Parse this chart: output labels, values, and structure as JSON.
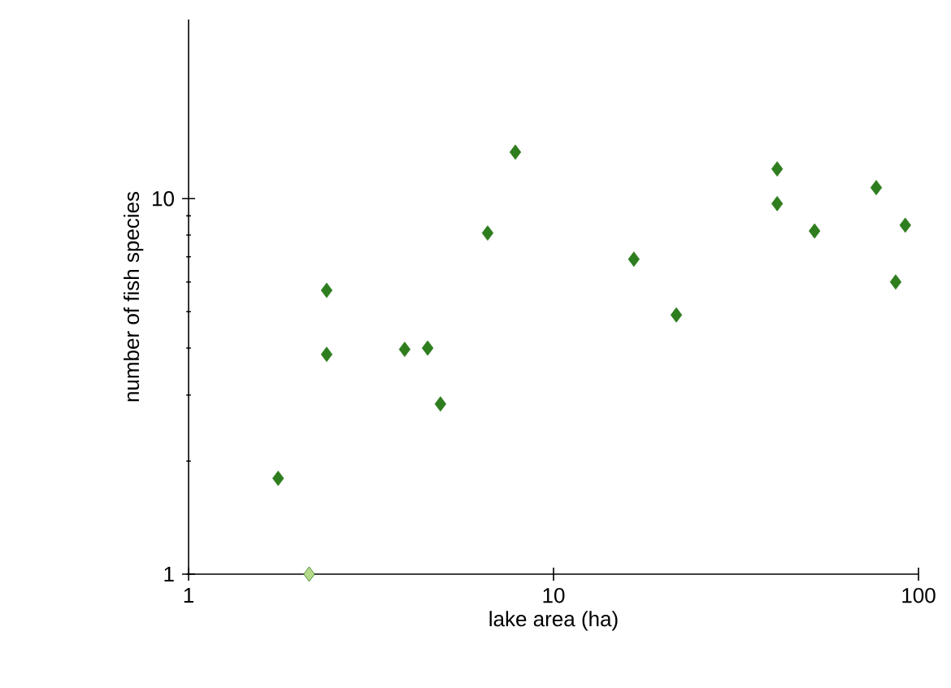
{
  "chart_data": {
    "type": "scatter",
    "xlabel": "lake area (ha)",
    "ylabel": "number of fish species",
    "log": "xy",
    "xlim": [
      1,
      100
    ],
    "ylim": [
      1,
      30
    ],
    "xticks": [
      1,
      10,
      100
    ],
    "yticks": [
      1,
      10
    ],
    "grid": false,
    "marker": "diamond",
    "x": [
      1.76,
      2.14,
      2.39,
      2.39,
      3.91,
      4.52,
      4.9,
      6.6,
      7.86,
      16.6,
      21.7,
      41,
      41,
      51.9,
      76.6,
      86.6,
      92
    ],
    "values": [
      1.8,
      1,
      5.7,
      3.85,
      3.97,
      4.0,
      2.84,
      8.1,
      13.3,
      6.9,
      4.9,
      12,
      9.7,
      8.2,
      10.7,
      6.0,
      8.5
    ],
    "colors": [
      "#2e7d1e",
      "#b5d98a",
      "#2e7d1e",
      "#2e7d1e",
      "#2e7d1e",
      "#2e7d1e",
      "#2e7d1e",
      "#2e7d1e",
      "#2e7d1e",
      "#2e7d1e",
      "#2e7d1e",
      "#2e7d1e",
      "#2e7d1e",
      "#2e7d1e",
      "#2e7d1e",
      "#2e7d1e",
      "#2e7d1e"
    ]
  }
}
